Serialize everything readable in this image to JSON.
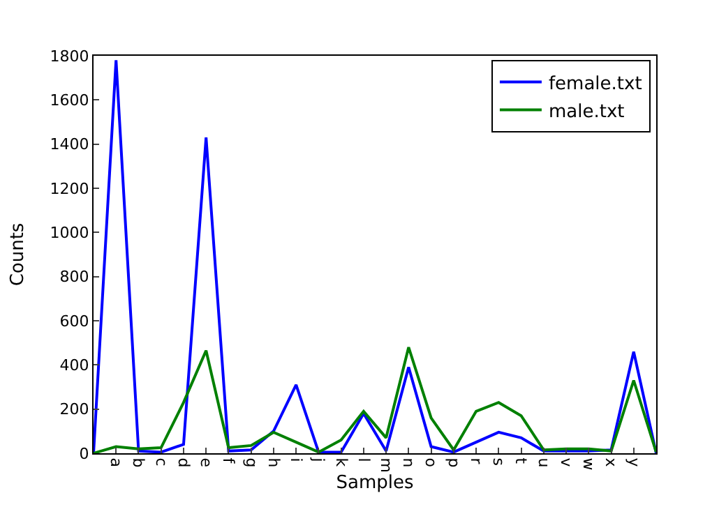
{
  "chart_data": {
    "type": "line",
    "xlabel": "Samples",
    "ylabel": "Counts",
    "categories": [
      null,
      "a",
      "b",
      "c",
      "d",
      "e",
      "f",
      "g",
      "h",
      "i",
      "j",
      "k",
      "l",
      "m",
      "n",
      "o",
      "p",
      "r",
      "s",
      "t",
      "u",
      "v",
      "w",
      "x",
      "y",
      null
    ],
    "series": [
      {
        "name": "female.txt",
        "color": "#0000ff",
        "values": [
          0,
          1780,
          10,
          5,
          40,
          1430,
          10,
          15,
          100,
          310,
          5,
          5,
          180,
          10,
          390,
          30,
          5,
          50,
          95,
          70,
          10,
          10,
          10,
          15,
          460,
          0
        ]
      },
      {
        "name": "male.txt",
        "color": "#008000",
        "values": [
          0,
          30,
          20,
          25,
          230,
          465,
          25,
          35,
          95,
          50,
          5,
          60,
          190,
          70,
          480,
          160,
          15,
          190,
          230,
          170,
          15,
          20,
          20,
          10,
          330,
          5
        ]
      }
    ],
    "ylim": [
      0,
      1800
    ],
    "yticks": [
      0,
      200,
      400,
      600,
      800,
      1000,
      1200,
      1400,
      1600,
      1800
    ],
    "legend": "top right",
    "marker": "none",
    "line_style": "solid"
  }
}
